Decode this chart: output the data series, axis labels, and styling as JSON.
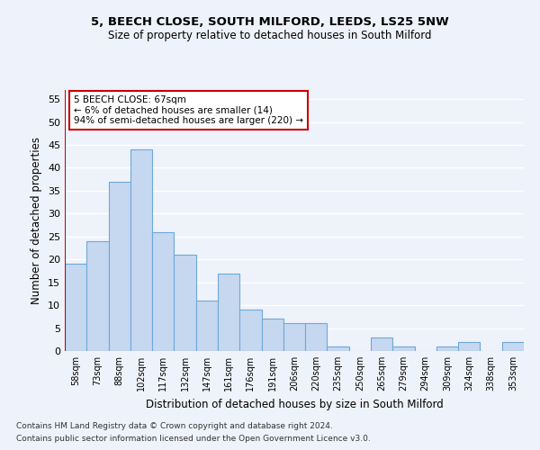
{
  "title1": "5, BEECH CLOSE, SOUTH MILFORD, LEEDS, LS25 5NW",
  "title2": "Size of property relative to detached houses in South Milford",
  "xlabel": "Distribution of detached houses by size in South Milford",
  "ylabel": "Number of detached properties",
  "bar_labels": [
    "58sqm",
    "73sqm",
    "88sqm",
    "102sqm",
    "117sqm",
    "132sqm",
    "147sqm",
    "161sqm",
    "176sqm",
    "191sqm",
    "206sqm",
    "220sqm",
    "235sqm",
    "250sqm",
    "265sqm",
    "279sqm",
    "294sqm",
    "309sqm",
    "324sqm",
    "338sqm",
    "353sqm"
  ],
  "bar_values": [
    19,
    24,
    37,
    44,
    26,
    21,
    11,
    17,
    9,
    7,
    6,
    6,
    1,
    0,
    3,
    1,
    0,
    1,
    2,
    0,
    2
  ],
  "bar_color": "#c5d8f0",
  "bar_edge_color": "#6fa8d8",
  "vline_color": "#cc0000",
  "annotation_text": "5 BEECH CLOSE: 67sqm\n← 6% of detached houses are smaller (14)\n94% of semi-detached houses are larger (220) →",
  "annotation_box_color": "#ffffff",
  "annotation_box_edge": "#cc0000",
  "ylim": [
    0,
    57
  ],
  "yticks": [
    0,
    5,
    10,
    15,
    20,
    25,
    30,
    35,
    40,
    45,
    50,
    55
  ],
  "footer1": "Contains HM Land Registry data © Crown copyright and database right 2024.",
  "footer2": "Contains public sector information licensed under the Open Government Licence v3.0.",
  "bg_color": "#eef2fa",
  "grid_color": "#ffffff"
}
